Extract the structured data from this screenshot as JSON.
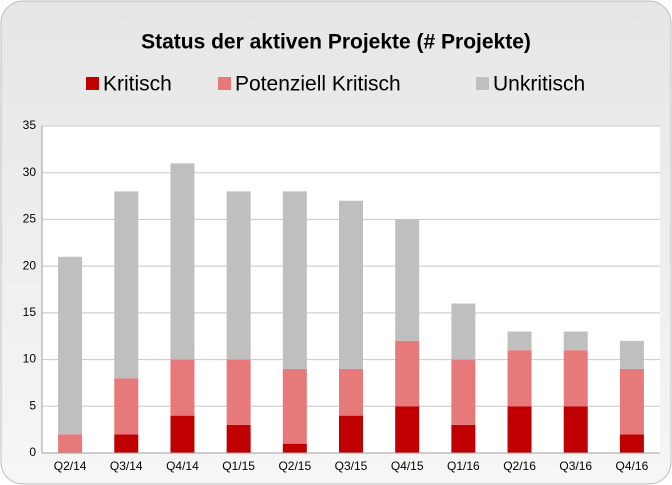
{
  "chart_data": {
    "type": "stacked_bar",
    "title": "Status der aktiven Projekte  (# Projekte)",
    "categories": [
      "Q2/14",
      "Q3/14",
      "Q4/14",
      "Q1/15",
      "Q2/15",
      "Q3/15",
      "Q4/15",
      "Q1/16",
      "Q2/16",
      "Q3/16",
      "Q4/16"
    ],
    "series": [
      {
        "name": "Kritisch",
        "color": "#c00000",
        "values": [
          0,
          2,
          4,
          3,
          1,
          4,
          5,
          3,
          5,
          5,
          2
        ]
      },
      {
        "name": "Potenziell Kritisch",
        "color": "#e8797b",
        "values": [
          2,
          6,
          6,
          7,
          8,
          5,
          7,
          7,
          6,
          6,
          7
        ]
      },
      {
        "name": "Unkritisch",
        "color": "#bfbfbf",
        "values": [
          19,
          20,
          21,
          18,
          19,
          18,
          13,
          6,
          2,
          2,
          3
        ]
      }
    ],
    "ylim": [
      0,
      35
    ],
    "yticks": [
      0,
      5,
      10,
      15,
      20,
      25,
      30,
      35
    ],
    "grid": true,
    "legend": "top"
  }
}
